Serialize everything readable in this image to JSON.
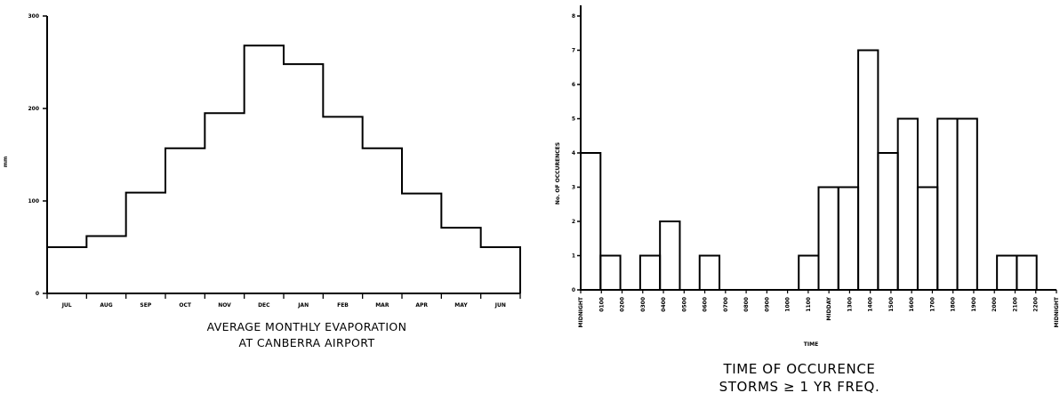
{
  "chart_data": [
    {
      "type": "bar",
      "title": "AVERAGE MONTHLY EVAPORATION\nAT CANBERRA AIRPORT",
      "title_lines": [
        "AVERAGE MONTHLY EVAPORATION",
        "AT CANBERRA AIRPORT"
      ],
      "ylabel": "mm",
      "xlabel": "",
      "ylim": [
        0,
        300
      ],
      "yticks": [
        "0",
        "100",
        "200",
        "300"
      ],
      "categories": [
        "JUL",
        "AUG",
        "SEP",
        "OCT",
        "NOV",
        "DEC",
        "JAN",
        "FEB",
        "MAR",
        "APR",
        "MAY",
        "JUN"
      ],
      "values": [
        50,
        62,
        109,
        157,
        195,
        268,
        248,
        191,
        157,
        108,
        71,
        50
      ],
      "style": "step histogram",
      "grid": false
    },
    {
      "type": "bar",
      "title": "TIME OF OCCURENCE\nSTORMS ≥ 1 YR FREQ.",
      "title_lines": [
        "TIME OF OCCURENCE",
        "STORMS ≥ 1 YR FREQ."
      ],
      "ylabel": "No. OF OCCURENCES",
      "xlabel": "TIME",
      "ylim": [
        0,
        8
      ],
      "yticks": [
        "0",
        "1",
        "2",
        "3",
        "4",
        "5",
        "6",
        "7",
        "8"
      ],
      "x_tick_labels": [
        "MIDNIGHT",
        "0100",
        "0200",
        "0300",
        "0400",
        "0500",
        "0600",
        "0700",
        "0800",
        "0900",
        "1000",
        "1100",
        "MIDDAY",
        "1300",
        "1400",
        "1500",
        "1600",
        "1700",
        "1800",
        "1900",
        "2000",
        "2100",
        "2200",
        "MIDNIGHT"
      ],
      "categories": [
        "0000",
        "0100",
        "0200",
        "0300",
        "0400",
        "0500",
        "0600",
        "0700",
        "0800",
        "0900",
        "1000",
        "1100",
        "1200",
        "1300",
        "1400",
        "1500",
        "1600",
        "1700",
        "1800",
        "1900",
        "2000",
        "2100",
        "2200",
        "2300"
      ],
      "values": [
        4,
        1,
        0,
        1,
        2,
        0,
        1,
        0,
        0,
        0,
        0,
        1,
        3,
        3,
        7,
        4,
        5,
        3,
        5,
        5,
        0,
        1,
        1,
        0
      ],
      "style": "histogram",
      "grid": false
    }
  ]
}
